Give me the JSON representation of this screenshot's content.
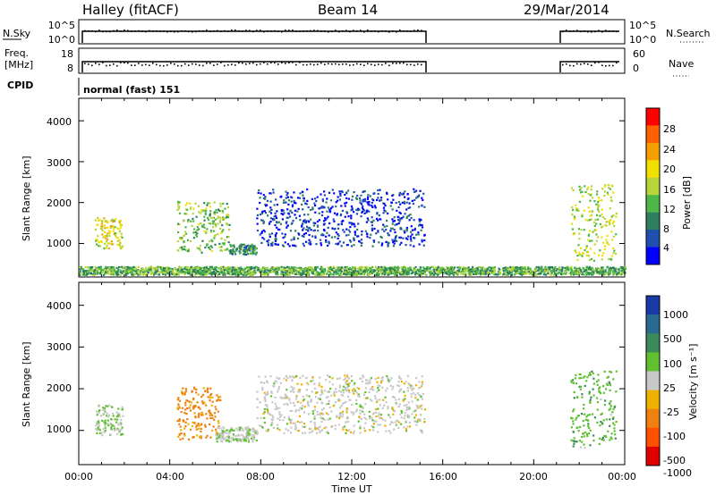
{
  "header": {
    "station": "Halley (fitACF)",
    "beam": "Beam 14",
    "date": "29/Mar/2014"
  },
  "strip_panels": {
    "nsky_label": "N.Sky",
    "nsky_ticks": [
      "10^5",
      "10^0"
    ],
    "nsearch_label": "N.Search",
    "nsearch_ticks": [
      "10^5",
      "10^0"
    ],
    "freq_label_1": "Freq.",
    "freq_label_2": "[MHz]",
    "freq_ticks": [
      "18",
      "8"
    ],
    "nave_label": "Nave",
    "nave_ticks": [
      "60",
      "0"
    ],
    "cpid_label": "CPID",
    "cpid_text": "normal (fast) 151"
  },
  "xaxis": {
    "label": "Time UT",
    "ticks": [
      "00:00",
      "04:00",
      "08:00",
      "12:00",
      "16:00",
      "20:00",
      "00:00"
    ]
  },
  "power_panel": {
    "ylabel": "Slant Range [km]",
    "yticks": [
      "4000",
      "3000",
      "2000",
      "1000"
    ],
    "colorbar_label": "Power [dB]",
    "colorbar_ticks": [
      "28",
      "24",
      "20",
      "16",
      "12",
      "8",
      "4"
    ]
  },
  "velocity_panel": {
    "ylabel": "Slant Range [km]",
    "yticks": [
      "4000",
      "3000",
      "2000",
      "1000"
    ],
    "colorbar_label": "Velocity [m s⁻¹]",
    "colorbar_ticks": [
      "1000",
      "500",
      "100",
      "25",
      "-25",
      "-100",
      "-500",
      "-1000"
    ]
  },
  "chart_data": [
    {
      "type": "heatmap",
      "title": "Beam 14",
      "xlabel": "Time UT",
      "ylabel": "Slant Range [km]",
      "xlim_hours": [
        0,
        24
      ],
      "ylim_km": [
        180,
        4550
      ],
      "colorbar": "Power [dB]",
      "clim": [
        0,
        32
      ],
      "colors": [
        "#0000ff",
        "#1f4faf",
        "#2e7f5e",
        "#4db848",
        "#b8d43a",
        "#f0e000",
        "#f5a000",
        "#ff6000",
        "#ff0000"
      ],
      "echo_regions": [
        {
          "t_start": 0.7,
          "t_end": 1.9,
          "range_start": 900,
          "range_end": 1650,
          "power": 18
        },
        {
          "t_start": 4.3,
          "t_end": 6.6,
          "range_start": 800,
          "range_end": 2050,
          "power": 14
        },
        {
          "t_start": 6.6,
          "t_end": 7.8,
          "range_start": 750,
          "range_end": 1000,
          "power": 10
        },
        {
          "t_start": 7.8,
          "t_end": 15.2,
          "range_start": 950,
          "range_end": 2350,
          "power": 4
        },
        {
          "t_start": 21.6,
          "t_end": 23.6,
          "range_start": 600,
          "range_end": 2450,
          "power": 16
        },
        {
          "t_start": 0,
          "t_end": 24,
          "range_start": 250,
          "range_end": 450,
          "power": 12
        }
      ]
    },
    {
      "type": "heatmap",
      "title": "Beam 14",
      "xlabel": "Time UT",
      "ylabel": "Slant Range [km]",
      "xlim_hours": [
        0,
        24
      ],
      "ylim_km": [
        180,
        4550
      ],
      "colorbar": "Velocity [m s⁻¹]",
      "clim": [
        -1000,
        1000
      ],
      "colors": [
        "#e00000",
        "#ff5000",
        "#f08010",
        "#f0b000",
        "#c8c8c8",
        "#60c030",
        "#3a8a5a",
        "#2a6a90",
        "#1a3aa8"
      ],
      "echo_regions": [
        {
          "t_start": 0.7,
          "t_end": 1.9,
          "range_start": 900,
          "range_end": 1650,
          "velocity": 100
        },
        {
          "t_start": 4.3,
          "t_end": 6.2,
          "range_start": 800,
          "range_end": 2050,
          "velocity": -400
        },
        {
          "t_start": 6.0,
          "t_end": 7.8,
          "range_start": 750,
          "range_end": 1100,
          "velocity": 60
        },
        {
          "t_start": 7.8,
          "t_end": 15.2,
          "range_start": 950,
          "range_end": 2350,
          "velocity": 0
        },
        {
          "t_start": 21.6,
          "t_end": 23.6,
          "range_start": 600,
          "range_end": 2450,
          "velocity": 250
        }
      ]
    }
  ]
}
